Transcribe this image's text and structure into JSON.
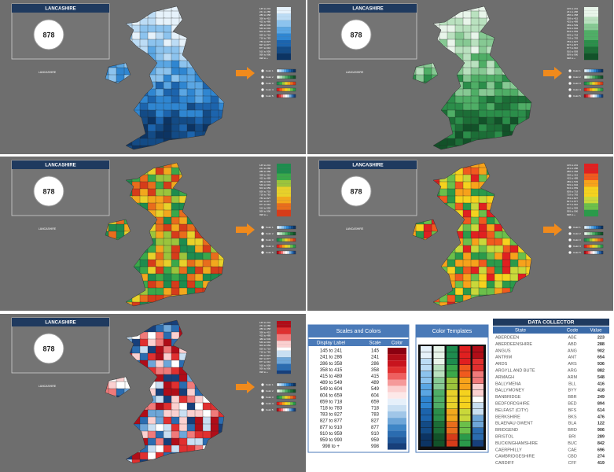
{
  "selector": {
    "title": "LANCASHIRE",
    "value": 878,
    "region": "LANCASHIRE",
    "options": [
      "Color 1",
      "Color 2",
      "Color 3",
      "Color 4",
      "Color 5"
    ]
  },
  "scales": {
    "title": "Scales and Colors",
    "headers": [
      "Display Label",
      "Scale",
      "Color"
    ],
    "rows": [
      [
        "145 to 241",
        145
      ],
      [
        "241 to 286",
        241
      ],
      [
        "286 to 358",
        286
      ],
      [
        "358 to 415",
        358
      ],
      [
        "415 to 489",
        415
      ],
      [
        "489 to 549",
        489
      ],
      [
        "549 to 604",
        549
      ],
      [
        "604 to 659",
        604
      ],
      [
        "659 to 718",
        659
      ],
      [
        "718 to 783",
        718
      ],
      [
        "783 to 827",
        783
      ],
      [
        "827 to 877",
        827
      ],
      [
        "877 to 910",
        877
      ],
      [
        "910 to 959",
        910
      ],
      [
        "959 to 990",
        959
      ],
      [
        "998 to +",
        998
      ]
    ]
  },
  "templates": {
    "title": "Color Templates"
  },
  "collector": {
    "title": "DATA COLLECTOR",
    "headers": [
      "State",
      "Code",
      "Value"
    ],
    "rows": [
      [
        "ABERDEEN",
        "ABE",
        223
      ],
      [
        "ABERDEENSHIRE",
        "ABD",
        288
      ],
      [
        "ANGUS",
        "ANG",
        902
      ],
      [
        "ANTRIM",
        "ANT",
        654
      ],
      [
        "ARDS",
        "ARS",
        936
      ],
      [
        "ARGYLL AND BUTE",
        "ARG",
        882
      ],
      [
        "ARMAGH",
        "ARM",
        548
      ],
      [
        "BALLYMENA",
        "BLL",
        416
      ],
      [
        "BALLYMONEY",
        "BYY",
        418
      ],
      [
        "BANBRIDGE",
        "BBR",
        249
      ],
      [
        "BEDFORDSHIRE",
        "BED",
        894
      ],
      [
        "BELFAST (CITY)",
        "BFS",
        614
      ],
      [
        "BERKSHIRE",
        "BKS",
        476
      ],
      [
        "BLAENAU GWENT",
        "BLA",
        122
      ],
      [
        "BRIDGEND",
        "BRD",
        906
      ],
      [
        "BRISTOL",
        "BRI",
        289
      ],
      [
        "BUCKINGHAMSHIRE",
        "BUC",
        842
      ],
      [
        "CAERPHILLY",
        "CAE",
        696
      ],
      [
        "CAMBRIDGESHIRE",
        "CBD",
        274
      ],
      [
        "CARDIFF",
        "CFF",
        419
      ]
    ]
  }
}
